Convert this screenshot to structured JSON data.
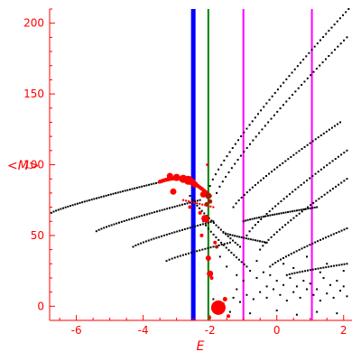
{
  "chart_data": {
    "type": "scatter",
    "title": "",
    "xlabel": "E",
    "ylabel": "<M>",
    "xlim": [
      -6.8,
      2.25
    ],
    "ylim": [
      -10,
      210
    ],
    "x_ticks": [
      -6,
      -4,
      -2,
      0,
      2
    ],
    "y_ticks": [
      0,
      50,
      100,
      150,
      200
    ],
    "grid": false,
    "colors": {
      "axis": "#ff0000",
      "black_points": "#000000",
      "red_points": "#ff0000",
      "dark_red_points": "#a02000",
      "blue_line": "#0000ff",
      "green_line": "#008000",
      "magenta_line": "#ff00ff"
    },
    "vertical_lines": [
      {
        "x": -2.5,
        "color": "#0000ff"
      },
      {
        "x": -2.05,
        "color": "#008000"
      },
      {
        "x": -1.0,
        "color": "#ff00ff"
      },
      {
        "x": 1.05,
        "color": "#ff00ff"
      }
    ],
    "black_curves": [
      {
        "x_start": -6.75,
        "y_start": 66,
        "x_end": -2.9,
        "y_end": 91,
        "n": 55
      },
      {
        "x_start": -5.4,
        "y_start": 53,
        "x_end": -2.3,
        "y_end": 75,
        "n": 42
      },
      {
        "x_start": -4.3,
        "y_start": 42,
        "x_end": -1.9,
        "y_end": 60,
        "n": 32
      },
      {
        "x_start": -3.3,
        "y_start": 32,
        "x_end": -1.4,
        "y_end": 45,
        "n": 24
      },
      {
        "x_start": -1.6,
        "y_start": 52,
        "x_end": -0.3,
        "y_end": 45,
        "n": 20
      },
      {
        "x_start": -1.0,
        "y_start": 60,
        "x_end": 1.2,
        "y_end": 70,
        "n": 34
      },
      {
        "x_start": -1.3,
        "y_start": 70,
        "x_end": 1.9,
        "y_end": 130,
        "n": 40
      },
      {
        "x_start": -1.8,
        "y_start": 80,
        "x_end": 2.1,
        "y_end": 190,
        "n": 44
      },
      {
        "x_start": -2.0,
        "y_start": 85,
        "x_end": 2.15,
        "y_end": 210,
        "n": 50
      },
      {
        "x_start": -0.9,
        "y_start": 50,
        "x_end": 2.1,
        "y_end": 110,
        "n": 36
      },
      {
        "x_start": -0.5,
        "y_start": 40,
        "x_end": 2.1,
        "y_end": 90,
        "n": 32
      },
      {
        "x_start": -0.2,
        "y_start": 28,
        "x_end": 2.1,
        "y_end": 55,
        "n": 30
      },
      {
        "x_start": 0.3,
        "y_start": 22,
        "x_end": 2.1,
        "y_end": 30,
        "n": 24
      },
      {
        "x_start": -2.6,
        "y_start": 78,
        "x_end": -1.1,
        "y_end": 42,
        "n": 22
      },
      {
        "x_start": -2.2,
        "y_start": 60,
        "x_end": -0.9,
        "y_end": 28,
        "n": 18
      }
    ],
    "black_scatter_noise": [
      [
        -1.7,
        35
      ],
      [
        -1.5,
        28
      ],
      [
        -1.2,
        22
      ],
      [
        -1.0,
        18
      ],
      [
        -0.8,
        25
      ],
      [
        -0.6,
        20
      ],
      [
        -0.4,
        24
      ],
      [
        -0.2,
        22
      ],
      [
        0.0,
        18
      ],
      [
        0.2,
        15
      ],
      [
        0.4,
        20
      ],
      [
        0.6,
        14
      ],
      [
        0.8,
        18
      ],
      [
        1.0,
        16
      ],
      [
        1.2,
        12
      ],
      [
        1.4,
        20
      ],
      [
        1.6,
        15
      ],
      [
        1.8,
        18
      ],
      [
        2.0,
        14
      ],
      [
        -1.9,
        5
      ],
      [
        -1.6,
        2
      ],
      [
        -1.3,
        6
      ],
      [
        -1.1,
        3
      ],
      [
        -0.9,
        8
      ],
      [
        -0.7,
        5
      ],
      [
        -0.5,
        10
      ],
      [
        -0.3,
        6
      ],
      [
        -0.1,
        12
      ],
      [
        0.1,
        8
      ],
      [
        0.3,
        4
      ],
      [
        0.5,
        10
      ],
      [
        0.7,
        6
      ],
      [
        0.9,
        12
      ],
      [
        1.1,
        8
      ],
      [
        1.3,
        4
      ],
      [
        1.5,
        9
      ],
      [
        1.7,
        6
      ],
      [
        1.9,
        11
      ],
      [
        2.1,
        7
      ],
      [
        -1.4,
        -4
      ],
      [
        -0.8,
        -5
      ],
      [
        0.0,
        -3
      ],
      [
        0.6,
        -6
      ],
      [
        1.2,
        -4
      ],
      [
        1.8,
        -5
      ],
      [
        -0.6,
        32
      ],
      [
        0.2,
        30
      ],
      [
        0.9,
        35
      ],
      [
        1.5,
        30
      ],
      [
        2.0,
        25
      ],
      [
        -1.2,
        12
      ],
      [
        -0.3,
        14
      ],
      [
        0.5,
        27
      ],
      [
        1.3,
        24
      ]
    ],
    "red_curve": {
      "x_start": -3.5,
      "y_start": 88,
      "x_end": -2.0,
      "y_end": 78,
      "n": 26
    },
    "red_arc": {
      "x_start": -2.8,
      "y_start": 75,
      "x_end": -1.9,
      "y_end": 70,
      "n": 12
    },
    "red_points": [
      {
        "x": -3.2,
        "y": 92,
        "s": 3.5
      },
      {
        "x": -3.0,
        "y": 91,
        "s": 4
      },
      {
        "x": -2.8,
        "y": 90,
        "s": 4.5
      },
      {
        "x": -2.65,
        "y": 89,
        "s": 5
      },
      {
        "x": -2.55,
        "y": 88,
        "s": 4
      },
      {
        "x": -2.45,
        "y": 86,
        "s": 3.5
      },
      {
        "x": -3.1,
        "y": 81,
        "s": 3.5
      },
      {
        "x": -2.2,
        "y": 79,
        "s": 3.5
      },
      {
        "x": -2.15,
        "y": 62,
        "s": 4
      },
      {
        "x": -2.1,
        "y": 61,
        "s": 3
      },
      {
        "x": -2.05,
        "y": 34,
        "s": 3
      },
      {
        "x": -2.0,
        "y": 23,
        "s": 3.5
      },
      {
        "x": -1.75,
        "y": -1,
        "s": 8
      },
      {
        "x": -1.55,
        "y": 5,
        "s": 2.5
      },
      {
        "x": -1.95,
        "y": 20,
        "s": 2
      },
      {
        "x": -2.25,
        "y": 50,
        "s": 2
      },
      {
        "x": -2.3,
        "y": 66,
        "s": 2
      },
      {
        "x": -2.08,
        "y": 100,
        "s": 1.5
      },
      {
        "x": -1.45,
        "y": -7,
        "s": 2
      },
      {
        "x": -2.0,
        "y": -8,
        "s": 1.5
      },
      {
        "x": -2.6,
        "y": 70,
        "s": 2
      },
      {
        "x": -1.85,
        "y": 45,
        "s": 2
      }
    ],
    "dark_red_points": [
      {
        "x": -2.05,
        "y": 78,
        "s": 3.5
      },
      {
        "x": -2.1,
        "y": 72,
        "s": 2.5
      },
      {
        "x": -2.0,
        "y": 74,
        "s": 2.5
      },
      {
        "x": -1.8,
        "y": 42,
        "s": 2
      }
    ]
  }
}
